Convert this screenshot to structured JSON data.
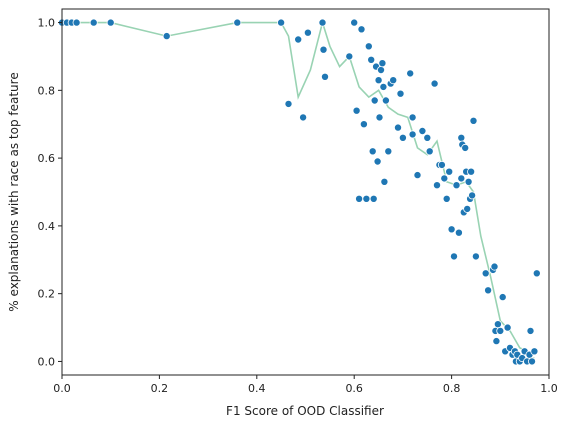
{
  "chart_data": {
    "type": "scatter",
    "title": "",
    "xlabel": "F1 Score of OOD Classifier",
    "ylabel": "% explanations with race as top feature",
    "xlim": [
      0.0,
      1.0
    ],
    "ylim": [
      -0.04,
      1.04
    ],
    "xticks": [
      0.0,
      0.2,
      0.4,
      0.6,
      0.8,
      1.0
    ],
    "yticks": [
      0.0,
      0.2,
      0.4,
      0.6,
      0.8,
      1.0
    ],
    "xtick_labels": [
      "0.0",
      "0.2",
      "0.4",
      "0.6",
      "0.8",
      "1.0"
    ],
    "ytick_labels": [
      "0.0",
      "0.2",
      "0.4",
      "0.6",
      "0.8",
      "1.0"
    ],
    "grid": false,
    "colors": {
      "points": "#1f77b4",
      "line": "#99d3b3",
      "axes": "#222222"
    },
    "scatter_series": {
      "x": [
        0.0,
        0.01,
        0.02,
        0.03,
        0.065,
        0.1,
        0.215,
        0.36,
        0.45,
        0.465,
        0.485,
        0.495,
        0.505,
        0.535,
        0.537,
        0.54,
        0.59,
        0.6,
        0.605,
        0.61,
        0.615,
        0.62,
        0.625,
        0.63,
        0.635,
        0.638,
        0.64,
        0.642,
        0.645,
        0.648,
        0.65,
        0.652,
        0.655,
        0.658,
        0.66,
        0.662,
        0.665,
        0.67,
        0.675,
        0.68,
        0.69,
        0.695,
        0.7,
        0.715,
        0.72,
        0.72,
        0.73,
        0.74,
        0.75,
        0.755,
        0.765,
        0.77,
        0.775,
        0.78,
        0.785,
        0.79,
        0.795,
        0.8,
        0.805,
        0.81,
        0.815,
        0.82,
        0.82,
        0.822,
        0.825,
        0.828,
        0.83,
        0.832,
        0.835,
        0.838,
        0.84,
        0.842,
        0.845,
        0.85,
        0.87,
        0.875,
        0.885,
        0.888,
        0.89,
        0.892,
        0.895,
        0.9,
        0.905,
        0.91,
        0.915,
        0.92,
        0.925,
        0.93,
        0.932,
        0.935,
        0.94,
        0.945,
        0.95,
        0.955,
        0.96,
        0.962,
        0.965,
        0.97,
        0.975
      ],
      "y": [
        1.0,
        1.0,
        1.0,
        1.0,
        1.0,
        1.0,
        0.96,
        1.0,
        1.0,
        0.76,
        0.95,
        0.72,
        0.97,
        1.0,
        0.92,
        0.84,
        0.9,
        1.0,
        0.74,
        0.48,
        0.98,
        0.7,
        0.48,
        0.93,
        0.89,
        0.62,
        0.48,
        0.77,
        0.87,
        0.59,
        0.83,
        0.72,
        0.86,
        0.88,
        0.81,
        0.53,
        0.77,
        0.62,
        0.82,
        0.83,
        0.69,
        0.79,
        0.66,
        0.85,
        0.72,
        0.67,
        0.55,
        0.68,
        0.66,
        0.62,
        0.82,
        0.52,
        0.58,
        0.58,
        0.54,
        0.48,
        0.56,
        0.39,
        0.31,
        0.52,
        0.38,
        0.54,
        0.66,
        0.64,
        0.44,
        0.63,
        0.56,
        0.45,
        0.53,
        0.48,
        0.56,
        0.49,
        0.71,
        0.31,
        0.26,
        0.21,
        0.27,
        0.28,
        0.09,
        0.06,
        0.11,
        0.09,
        0.19,
        0.03,
        0.1,
        0.04,
        0.02,
        0.03,
        0.0,
        0.02,
        0.0,
        0.01,
        0.03,
        0.0,
        0.02,
        0.09,
        0.0,
        0.03,
        0.26
      ]
    },
    "line_series": {
      "x": [
        0.0,
        0.05,
        0.1,
        0.215,
        0.36,
        0.45,
        0.465,
        0.485,
        0.51,
        0.535,
        0.55,
        0.57,
        0.59,
        0.61,
        0.63,
        0.65,
        0.67,
        0.69,
        0.71,
        0.73,
        0.75,
        0.77,
        0.79,
        0.81,
        0.83,
        0.845,
        0.86,
        0.88,
        0.9,
        0.92,
        0.94,
        0.955,
        0.965,
        0.97
      ],
      "y": [
        1.0,
        1.0,
        1.0,
        0.96,
        1.0,
        1.0,
        0.96,
        0.78,
        0.86,
        1.0,
        0.93,
        0.87,
        0.9,
        0.81,
        0.78,
        0.8,
        0.75,
        0.73,
        0.72,
        0.63,
        0.61,
        0.65,
        0.53,
        0.52,
        0.53,
        0.5,
        0.37,
        0.25,
        0.12,
        0.09,
        0.04,
        0.03,
        0.01,
        0.01
      ]
    }
  }
}
